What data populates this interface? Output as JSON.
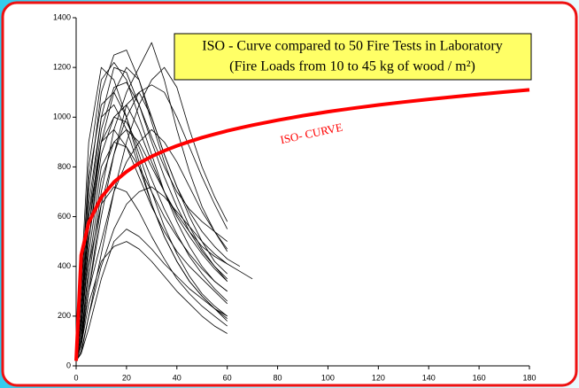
{
  "chart_data": {
    "type": "line",
    "title": "ISO - Curve compared to 50 Fire Tests in Laboratory",
    "subtitle": "(Fire Loads from 10 to 45 kg of wood / m²)",
    "annotation": "ISO- CURVE",
    "x": [
      0,
      2,
      5,
      10,
      15,
      20,
      25,
      30,
      35,
      40,
      45,
      50,
      55,
      60,
      65,
      70,
      80,
      90,
      100,
      110,
      120,
      130,
      140,
      150,
      160,
      170,
      180
    ],
    "xlim": [
      0,
      180
    ],
    "xticks": [
      0,
      20,
      40,
      60,
      80,
      100,
      120,
      140,
      160,
      180
    ],
    "ylim": [
      0,
      1400
    ],
    "yticks": [
      0,
      200,
      400,
      600,
      800,
      1000,
      1200,
      1400
    ],
    "grid": false,
    "series": [
      {
        "color": "#000000",
        "values": [
          20,
          300,
          800,
          1150,
          1220,
          1150,
          1000,
          850,
          700,
          580,
          480,
          400,
          340,
          300,
          null,
          null,
          null,
          null,
          null,
          null,
          null,
          null,
          null,
          null,
          null,
          null,
          null
        ]
      },
      {
        "color": "#000000",
        "values": [
          20,
          200,
          600,
          1000,
          1200,
          1180,
          1050,
          900,
          760,
          640,
          540,
          460,
          400,
          350,
          null,
          null,
          null,
          null,
          null,
          null,
          null,
          null,
          null,
          null,
          null,
          null,
          null
        ]
      },
      {
        "color": "#000000",
        "values": [
          20,
          150,
          500,
          900,
          1100,
          1200,
          1150,
          1000,
          850,
          720,
          600,
          500,
          420,
          370,
          null,
          null,
          null,
          null,
          null,
          null,
          null,
          null,
          null,
          null,
          null,
          null,
          null
        ]
      },
      {
        "color": "#000000",
        "values": [
          20,
          250,
          700,
          1100,
          1250,
          1270,
          1150,
          980,
          820,
          680,
          560,
          470,
          400,
          340,
          null,
          null,
          null,
          null,
          null,
          null,
          null,
          null,
          null,
          null,
          null,
          null,
          null
        ]
      },
      {
        "color": "#000000",
        "values": [
          20,
          100,
          350,
          700,
          950,
          1100,
          1200,
          1300,
          1150,
          950,
          780,
          640,
          540,
          460,
          null,
          null,
          null,
          null,
          null,
          null,
          null,
          null,
          null,
          null,
          null,
          null,
          null
        ]
      },
      {
        "color": "#000000",
        "values": [
          20,
          50,
          200,
          450,
          700,
          900,
          1050,
          1150,
          1200,
          1120,
          950,
          800,
          680,
          580,
          null,
          null,
          null,
          null,
          null,
          null,
          null,
          null,
          null,
          null,
          null,
          null,
          null
        ]
      },
      {
        "color": "#000000",
        "values": [
          20,
          300,
          750,
          1050,
          1100,
          1000,
          850,
          700,
          560,
          450,
          360,
          290,
          240,
          200,
          null,
          null,
          null,
          null,
          null,
          null,
          null,
          null,
          null,
          null,
          null,
          null,
          null
        ]
      },
      {
        "color": "#000000",
        "values": [
          20,
          80,
          300,
          600,
          850,
          1000,
          1100,
          1130,
          1100,
          1000,
          880,
          760,
          650,
          550,
          null,
          null,
          null,
          null,
          null,
          null,
          null,
          null,
          null,
          null,
          null,
          null,
          null
        ]
      },
      {
        "color": "#000000",
        "values": [
          20,
          200,
          650,
          1000,
          1050,
          950,
          800,
          650,
          520,
          420,
          340,
          280,
          230,
          190,
          null,
          null,
          null,
          null,
          null,
          null,
          null,
          null,
          null,
          null,
          null,
          null,
          null
        ]
      },
      {
        "color": "#000000",
        "values": [
          20,
          350,
          900,
          1200,
          1150,
          1000,
          820,
          650,
          520,
          420,
          340,
          280,
          230,
          180,
          null,
          null,
          null,
          null,
          null,
          null,
          null,
          null,
          null,
          null,
          null,
          null,
          null
        ]
      },
      {
        "color": "#000000",
        "values": [
          20,
          150,
          450,
          800,
          900,
          880,
          800,
          700,
          600,
          520,
          450,
          390,
          340,
          300,
          null,
          null,
          null,
          null,
          null,
          null,
          null,
          null,
          null,
          null,
          null,
          null,
          null
        ]
      },
      {
        "color": "#000000",
        "values": [
          20,
          100,
          400,
          750,
          900,
          950,
          900,
          800,
          700,
          600,
          520,
          450,
          390,
          340,
          null,
          null,
          null,
          null,
          null,
          null,
          null,
          null,
          null,
          null,
          null,
          null,
          null
        ]
      },
      {
        "color": "#000000",
        "values": [
          20,
          100,
          300,
          500,
          700,
          820,
          900,
          950,
          900,
          820,
          720,
          620,
          540,
          470,
          null,
          null,
          null,
          null,
          null,
          null,
          null,
          null,
          null,
          null,
          null,
          null,
          null
        ]
      },
      {
        "color": "#000000",
        "values": [
          20,
          50,
          150,
          350,
          500,
          550,
          520,
          470,
          410,
          360,
          310,
          270,
          230,
          200,
          null,
          null,
          null,
          null,
          null,
          null,
          null,
          null,
          null,
          null,
          null,
          null,
          null
        ]
      },
      {
        "color": "#000000",
        "values": [
          20,
          120,
          400,
          650,
          720,
          700,
          620,
          520,
          430,
          350,
          290,
          240,
          200,
          160,
          null,
          null,
          null,
          null,
          null,
          null,
          null,
          null,
          null,
          null,
          null,
          null,
          null
        ]
      },
      {
        "color": "#000000",
        "values": [
          20,
          200,
          550,
          900,
          1000,
          980,
          880,
          750,
          630,
          530,
          440,
          370,
          310,
          260,
          null,
          null,
          null,
          null,
          null,
          null,
          null,
          null,
          null,
          null,
          null,
          null,
          null
        ]
      },
      {
        "color": "#000000",
        "values": [
          20,
          80,
          250,
          420,
          480,
          500,
          470,
          420,
          360,
          300,
          250,
          200,
          160,
          130,
          null,
          null,
          null,
          null,
          null,
          null,
          null,
          null,
          null,
          null,
          null,
          null,
          null
        ]
      },
      {
        "color": "#000000",
        "values": [
          20,
          60,
          200,
          400,
          550,
          650,
          700,
          720,
          680,
          620,
          560,
          500,
          450,
          410,
          null,
          null,
          null,
          null,
          null,
          null,
          null,
          null,
          null,
          null,
          null,
          null,
          null
        ]
      },
      {
        "color": "#000000",
        "values": [
          20,
          100,
          300,
          650,
          850,
          1050,
          1100,
          1000,
          850,
          720,
          620,
          540,
          480,
          430,
          400,
          null,
          null,
          null,
          null,
          null,
          null,
          null,
          null,
          null,
          null,
          null,
          null
        ]
      },
      {
        "color": "#000000",
        "values": [
          20,
          150,
          500,
          850,
          1000,
          1050,
          950,
          820,
          700,
          610,
          540,
          480,
          440,
          410,
          380,
          350,
          null,
          null,
          null,
          null,
          null,
          null,
          null,
          null,
          null,
          null,
          null
        ]
      },
      {
        "color": "#000000",
        "values": [
          20,
          250,
          600,
          900,
          950,
          880,
          760,
          640,
          540,
          460,
          400,
          350,
          300,
          250,
          null,
          null,
          null,
          null,
          null,
          null,
          null,
          null,
          null,
          null,
          null,
          null,
          null
        ]
      },
      {
        "color": "#000000",
        "values": [
          20,
          180,
          550,
          950,
          1120,
          1140,
          1050,
          920,
          800,
          700,
          630,
          580,
          540,
          500,
          null,
          null,
          null,
          null,
          null,
          null,
          null,
          null,
          null,
          null,
          null,
          null,
          null
        ]
      },
      {
        "color": "#ff0000",
        "width": 4,
        "values": [
          20,
          445,
          576,
          678,
          739,
          781,
          815,
          842,
          865,
          885,
          902,
          918,
          932,
          945,
          957,
          968,
          988,
          1006,
          1022,
          1036,
          1049,
          1061,
          1072,
          1082,
          1092,
          1101,
          1110
        ]
      }
    ]
  }
}
